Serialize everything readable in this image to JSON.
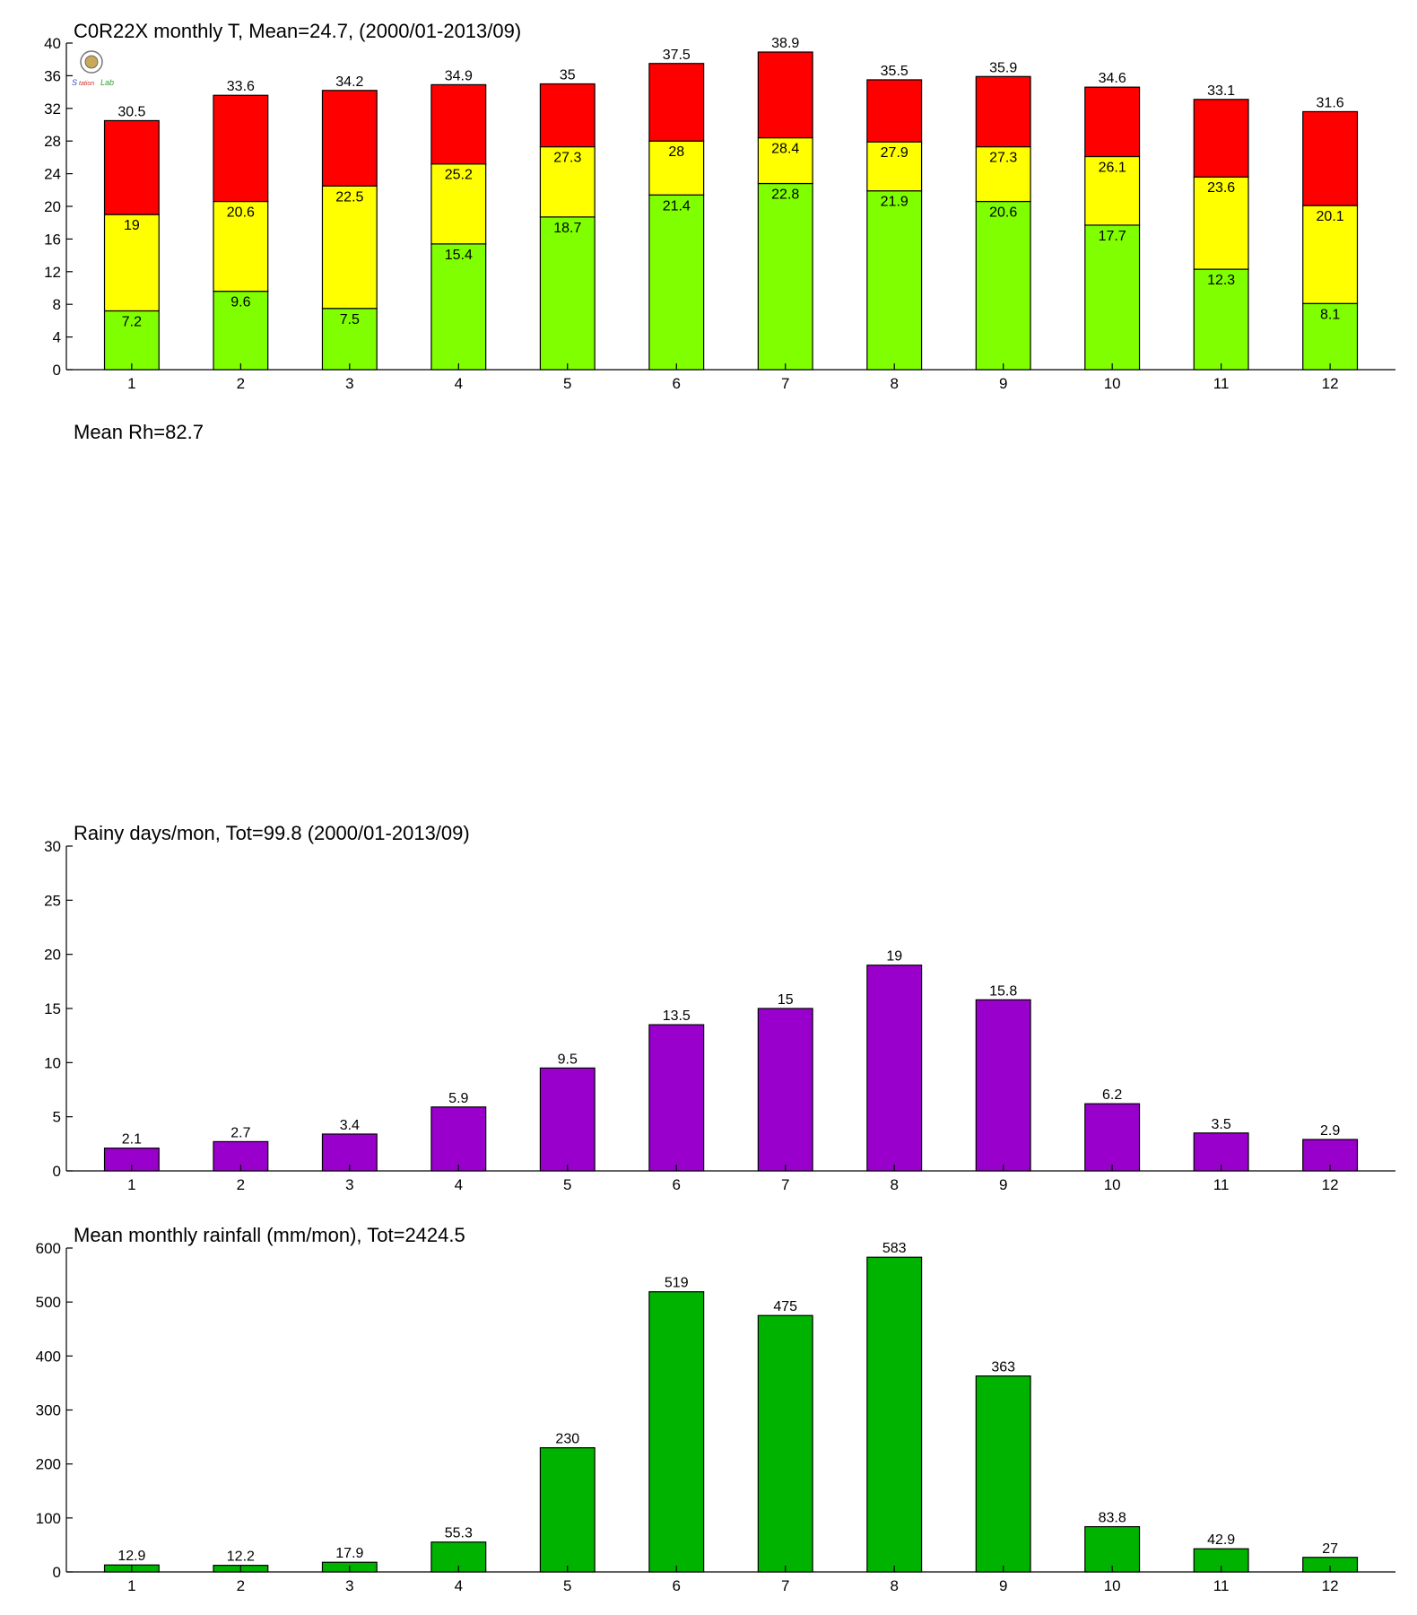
{
  "figure_texts": {
    "rh_title": "Mean Rh=82.7",
    "logo_text": "Lab"
  },
  "chart_data": [
    {
      "type": "bar",
      "subtype": "stacked",
      "title": "C0R22X monthly T, Mean=24.7, (2000/01-2013/09)",
      "xlabel": "",
      "ylabel": "",
      "categories": [
        "1",
        "2",
        "3",
        "4",
        "5",
        "6",
        "7",
        "8",
        "9",
        "10",
        "11",
        "12"
      ],
      "ylim": [
        0,
        40
      ],
      "yticks": [
        0,
        4,
        8,
        12,
        16,
        20,
        24,
        28,
        32,
        36,
        40
      ],
      "series": [
        {
          "color": "#80ff00",
          "values": [
            7.2,
            9.6,
            7.5,
            15.4,
            18.7,
            21.4,
            22.8,
            21.9,
            20.6,
            17.7,
            12.3,
            8.1
          ]
        },
        {
          "color": "#ffff00",
          "values": [
            19,
            20.6,
            22.5,
            25.2,
            27.3,
            28,
            28.4,
            27.9,
            27.3,
            26.1,
            23.6,
            20.1
          ]
        },
        {
          "color": "#ff0000",
          "values": [
            30.5,
            33.6,
            34.2,
            34.9,
            35,
            37.5,
            38.9,
            35.5,
            35.9,
            34.6,
            33.1,
            31.6
          ]
        }
      ],
      "grid": false
    },
    {
      "type": "bar",
      "title": "Rainy days/mon, Tot=99.8 (2000/01-2013/09)",
      "xlabel": "",
      "ylabel": "",
      "categories": [
        "1",
        "2",
        "3",
        "4",
        "5",
        "6",
        "7",
        "8",
        "9",
        "10",
        "11",
        "12"
      ],
      "values": [
        2.1,
        2.7,
        3.4,
        5.9,
        9.5,
        13.5,
        15,
        19,
        15.8,
        6.2,
        3.5,
        2.9
      ],
      "color": "#9900cc",
      "ylim": [
        0,
        30
      ],
      "yticks": [
        0,
        5,
        10,
        15,
        20,
        25,
        30
      ],
      "grid": false
    },
    {
      "type": "bar",
      "title": "Mean monthly rainfall (mm/mon), Tot=2424.5",
      "xlabel": "",
      "ylabel": "",
      "categories": [
        "1",
        "2",
        "3",
        "4",
        "5",
        "6",
        "7",
        "8",
        "9",
        "10",
        "11",
        "12"
      ],
      "values": [
        12.9,
        12.2,
        17.9,
        55.3,
        230,
        519,
        475,
        583,
        363,
        83.8,
        42.9,
        27
      ],
      "color": "#00b300",
      "ylim": [
        0,
        600
      ],
      "yticks": [
        0,
        100,
        200,
        300,
        400,
        500,
        600
      ],
      "grid": false
    }
  ]
}
